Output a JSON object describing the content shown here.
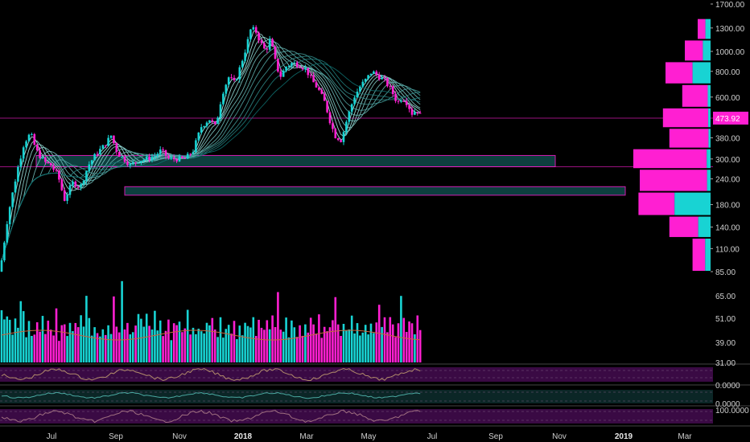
{
  "colors": {
    "background": "#000000",
    "up": "#18d3d3",
    "down": "#ff1fd2",
    "zone_fill": "#0f4a4a",
    "zone_border": "#d01cb0",
    "ma_light": "#b7f5f0",
    "ma_dark": "#0e6e6e",
    "volume_ma": "#c4653e",
    "osc_band": "#3a0a44",
    "osc2_band": "#0b2626"
  },
  "chart_data": [
    {
      "type": "candlestick",
      "scale": "log",
      "ylim": [
        80,
        1700
      ],
      "price_ticks": [
        "1700.00",
        "1300.00",
        "1000.00",
        "800.00",
        "600.00",
        "473.92",
        "380.00",
        "300.00",
        "240.00",
        "180.00",
        "140.00",
        "110.00",
        "85.00"
      ],
      "last_price": "473.92",
      "time_labels": [
        "Jul",
        "Sep",
        "Nov",
        "2018",
        "Mar",
        "May",
        "Jul",
        "Sep",
        "Nov",
        "2019",
        "Mar"
      ],
      "bold_time_labels": [
        "2018",
        "2019"
      ],
      "path": [
        {
          "t": 0,
          "p": 85
        },
        {
          "t": 10,
          "p": 160
        },
        {
          "t": 22,
          "p": 270
        },
        {
          "t": 30,
          "p": 360
        },
        {
          "t": 38,
          "p": 400
        },
        {
          "t": 45,
          "p": 330
        },
        {
          "t": 55,
          "p": 290
        },
        {
          "t": 63,
          "p": 280
        },
        {
          "t": 72,
          "p": 250
        },
        {
          "t": 80,
          "p": 190
        },
        {
          "t": 90,
          "p": 230
        },
        {
          "t": 100,
          "p": 220
        },
        {
          "t": 110,
          "p": 280
        },
        {
          "t": 120,
          "p": 320
        },
        {
          "t": 130,
          "p": 350
        },
        {
          "t": 138,
          "p": 390
        },
        {
          "t": 146,
          "p": 320
        },
        {
          "t": 154,
          "p": 300
        },
        {
          "t": 162,
          "p": 280
        },
        {
          "t": 172,
          "p": 295
        },
        {
          "t": 182,
          "p": 300
        },
        {
          "t": 192,
          "p": 310
        },
        {
          "t": 200,
          "p": 330
        },
        {
          "t": 210,
          "p": 300
        },
        {
          "t": 220,
          "p": 300
        },
        {
          "t": 230,
          "p": 300
        },
        {
          "t": 240,
          "p": 330
        },
        {
          "t": 250,
          "p": 430
        },
        {
          "t": 260,
          "p": 470
        },
        {
          "t": 268,
          "p": 430
        },
        {
          "t": 276,
          "p": 620
        },
        {
          "t": 284,
          "p": 750
        },
        {
          "t": 292,
          "p": 700
        },
        {
          "t": 300,
          "p": 880
        },
        {
          "t": 306,
          "p": 1050
        },
        {
          "t": 312,
          "p": 1300
        },
        {
          "t": 318,
          "p": 1250
        },
        {
          "t": 324,
          "p": 1100
        },
        {
          "t": 330,
          "p": 1000
        },
        {
          "t": 336,
          "p": 1150
        },
        {
          "t": 342,
          "p": 900
        },
        {
          "t": 348,
          "p": 750
        },
        {
          "t": 356,
          "p": 850
        },
        {
          "t": 364,
          "p": 880
        },
        {
          "t": 372,
          "p": 860
        },
        {
          "t": 380,
          "p": 820
        },
        {
          "t": 388,
          "p": 720
        },
        {
          "t": 396,
          "p": 650
        },
        {
          "t": 404,
          "p": 560
        },
        {
          "t": 410,
          "p": 460
        },
        {
          "t": 416,
          "p": 390
        },
        {
          "t": 424,
          "p": 370
        },
        {
          "t": 432,
          "p": 480
        },
        {
          "t": 440,
          "p": 600
        },
        {
          "t": 448,
          "p": 680
        },
        {
          "t": 456,
          "p": 740
        },
        {
          "t": 462,
          "p": 800
        },
        {
          "t": 470,
          "p": 760
        },
        {
          "t": 478,
          "p": 720
        },
        {
          "t": 486,
          "p": 650
        },
        {
          "t": 494,
          "p": 560
        },
        {
          "t": 500,
          "p": 600
        },
        {
          "t": 506,
          "p": 560
        },
        {
          "t": 512,
          "p": 500
        },
        {
          "t": 518,
          "p": 520
        },
        {
          "t": 524,
          "p": 474
        }
      ],
      "support_zones": [
        {
          "from": 45,
          "to": 690,
          "low": 275,
          "high": 312
        },
        {
          "from": 155,
          "to": 777,
          "low": 200,
          "high": 220
        }
      ],
      "price_levels": [
        "473.92",
        "275"
      ]
    },
    {
      "type": "bar",
      "name": "volume_profile",
      "levels": [
        "1300",
        "1000",
        "800",
        "600",
        "473.92",
        "380",
        "300",
        "240",
        "180",
        "140",
        "110"
      ],
      "up_share": [
        0.4,
        0.3,
        0.4,
        0.1,
        0.05,
        0.05,
        0.05,
        0.05,
        0.5,
        0.3,
        0.3
      ],
      "relative_volume": [
        0.1,
        0.2,
        0.35,
        0.22,
        0.37,
        0.32,
        0.6,
        0.55,
        0.56,
        0.32,
        0.14
      ]
    },
    {
      "type": "bar",
      "name": "volume",
      "ylim": [
        31,
        65
      ],
      "ticks": [
        "65.00",
        "51.00",
        "39.00",
        "31.00"
      ],
      "pattern": [
        0.3,
        0.45,
        0.25,
        0.55,
        0.35,
        0.6,
        0.4,
        0.3,
        0.7,
        0.25,
        0.5,
        0.35
      ]
    },
    {
      "type": "line",
      "name": "oscillator_1",
      "ticks": [
        "0.0000"
      ]
    },
    {
      "type": "line",
      "name": "oscillator_2",
      "ticks": [
        "0.0000"
      ]
    },
    {
      "type": "line",
      "name": "oscillator_3",
      "ticks": [
        "100.0000"
      ]
    }
  ]
}
